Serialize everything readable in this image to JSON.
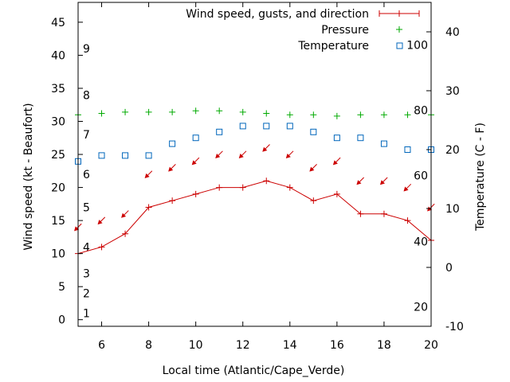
{
  "chart_data": {
    "type": "line",
    "xlabel": "Local time (Atlantic/Cape_Verde)",
    "ylabel_left": "Wind speed (kt - Beaufort)",
    "ylabel_right": "Temperature (C - F)",
    "xlim": [
      5,
      20
    ],
    "ylim_left": [
      -1,
      48
    ],
    "ylim_right": [
      -10,
      45
    ],
    "x_ticks": [
      6,
      8,
      10,
      12,
      14,
      16,
      18,
      20
    ],
    "y_ticks_left": [
      0,
      5,
      10,
      15,
      20,
      25,
      30,
      35,
      40,
      45
    ],
    "y_ticks_right": [
      -10,
      0,
      10,
      20,
      30,
      40
    ],
    "beaufort_labels": [
      {
        "label": "1",
        "kt": 1
      },
      {
        "label": "2",
        "kt": 4
      },
      {
        "label": "3",
        "kt": 7
      },
      {
        "label": "4",
        "kt": 11
      },
      {
        "label": "5",
        "kt": 17
      },
      {
        "label": "6",
        "kt": 22
      },
      {
        "label": "7",
        "kt": 28
      },
      {
        "label": "8",
        "kt": 34
      },
      {
        "label": "9",
        "kt": 41
      }
    ],
    "fahrenheit_labels": [
      {
        "label": "20",
        "c": -6.7
      },
      {
        "label": "40",
        "c": 4.4
      },
      {
        "label": "60",
        "c": 15.6
      },
      {
        "label": "80",
        "c": 26.7
      },
      {
        "label": "100",
        "c": 37.8
      }
    ],
    "x": [
      5,
      6,
      7,
      8,
      9,
      10,
      11,
      12,
      13,
      14,
      15,
      16,
      17,
      18,
      19,
      20
    ],
    "series": [
      {
        "name": "Wind speed, gusts, and direction",
        "axis": "left",
        "color": "#cc0000",
        "values": [
          10,
          11,
          13,
          17,
          18,
          19,
          20,
          20,
          21,
          20,
          18,
          19,
          16,
          16,
          15,
          12
        ]
      },
      {
        "name": "Pressure",
        "axis": "left",
        "color": "#00aa00",
        "values": [
          31,
          31.2,
          31.4,
          31.4,
          31.4,
          31.6,
          31.6,
          31.4,
          31.2,
          31,
          31,
          30.8,
          31,
          31,
          31,
          31
        ]
      },
      {
        "name": "Temperature",
        "axis": "right",
        "color": "#0066bb",
        "values": [
          18,
          19,
          19,
          19,
          21,
          22,
          23,
          24,
          24,
          24,
          23,
          22,
          22,
          21,
          20,
          20
        ]
      }
    ],
    "wind_arrows": {
      "color": "#cc0000",
      "kt_level": [
        14,
        15,
        16,
        22,
        23,
        24,
        25,
        25,
        26,
        25,
        23,
        24,
        21,
        21,
        20,
        17
      ],
      "direction_deg": [
        45,
        45,
        45,
        45,
        45,
        45,
        45,
        45,
        45,
        45,
        45,
        45,
        45,
        45,
        45,
        45
      ]
    },
    "legend_position": "top-right",
    "grid": false
  }
}
